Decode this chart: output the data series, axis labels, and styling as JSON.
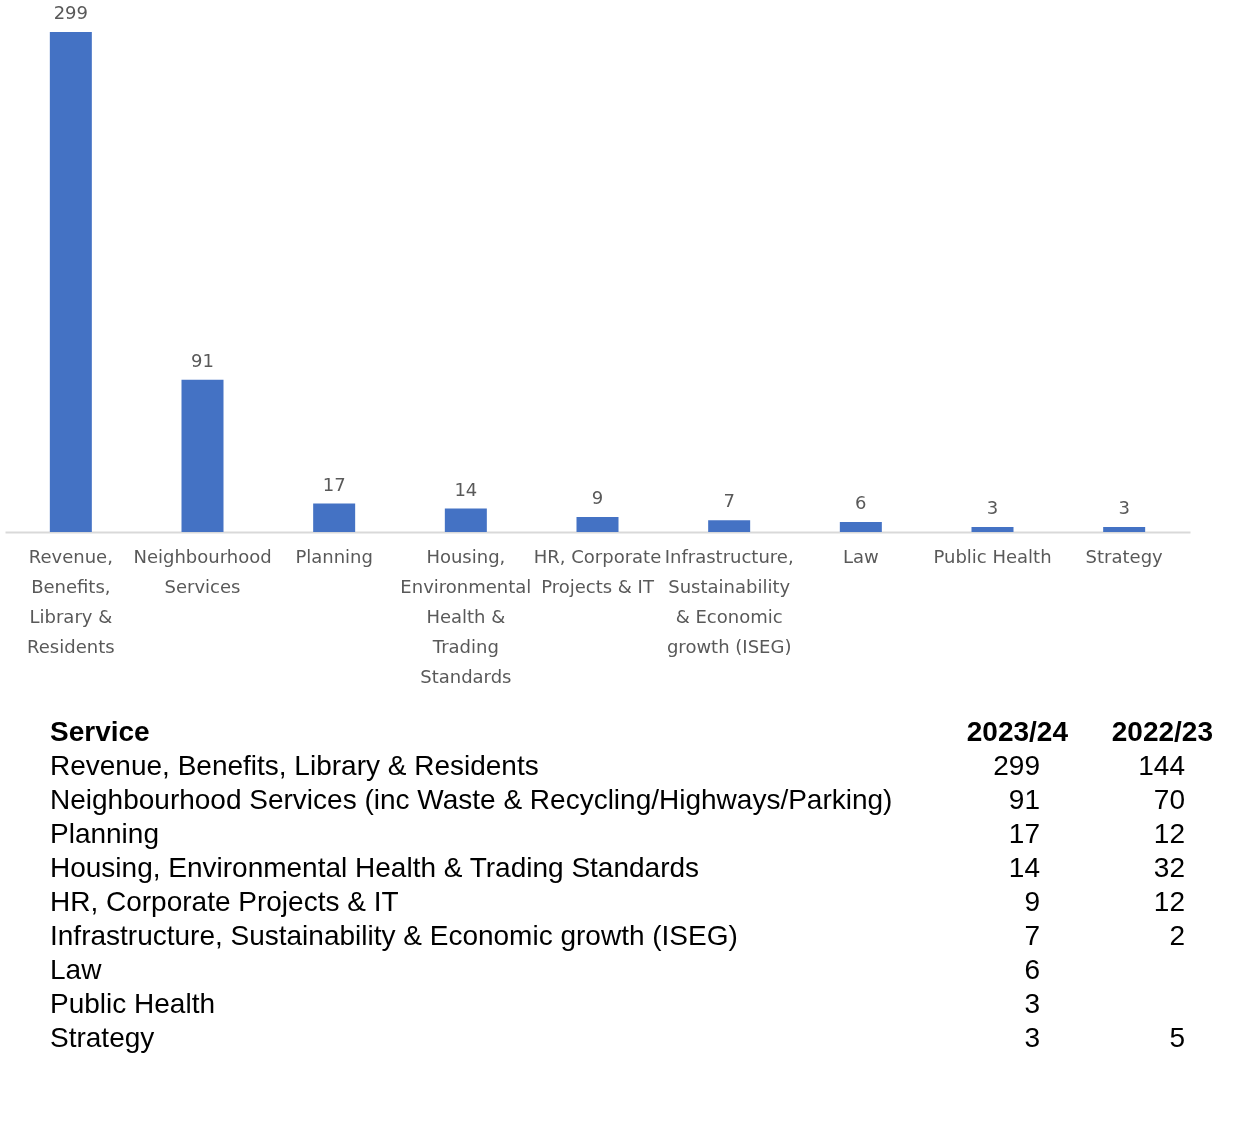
{
  "chart_data": [
    {
      "type": "bar",
      "categories": [
        "Revenue, Benefits, Library & Residents",
        "Neighbourhood Services",
        "Planning",
        "Housing, Environmental Health & Trading Standards",
        "HR, Corporate Projects & IT",
        "Infrastructure, Sustainability & Economic growth (ISEG)",
        "Law",
        "Public Health",
        "Strategy"
      ],
      "values": [
        299,
        91,
        17,
        14,
        9,
        7,
        6,
        3,
        3
      ],
      "color": "#4472c4",
      "data_labels": true
    },
    {
      "type": "other",
      "data_labels": true,
      "xlabel": "Service",
      "categories": [
        "Revenue, Benefits, Library & Residents",
        "Neighbourhood Services (inc Waste & Recycling/Highways/Parking)",
        "Planning",
        "Housing, Environmental Health & Trading Standards",
        "HR, Corporate Projects & IT",
        "Infrastructure, Sustainability & Economic growth (ISEG)",
        "Law",
        "Public Health",
        "Strategy"
      ],
      "series": [
        {
          "name": "2023/24",
          "values": [
            299,
            91,
            17,
            14,
            9,
            7,
            6,
            3,
            3
          ]
        },
        {
          "name": "2022/23",
          "values": [
            144,
            70,
            12,
            32,
            12,
            2,
            null,
            null,
            5
          ]
        }
      ]
    }
  ]
}
